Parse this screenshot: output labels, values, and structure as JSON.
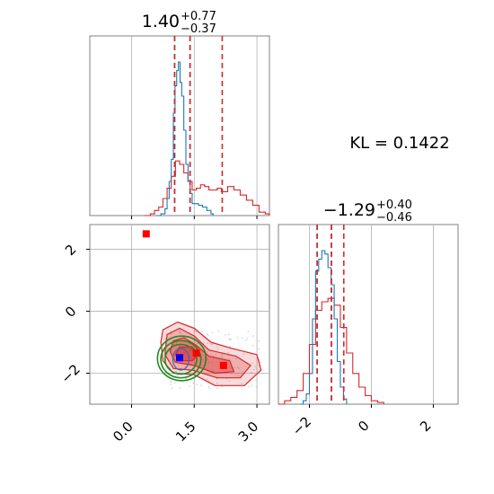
{
  "colors": {
    "blue": "#1f77b4",
    "red": "#d62728",
    "green": "#228b22",
    "marker_red": "#ff0000",
    "marker_blue": "#0000ff",
    "grid": "#b0b0b0",
    "spine": "#808080"
  },
  "chart_data": {
    "type": "corner",
    "kl_text": "KL = 0.1422",
    "param1": {
      "median": "1.40",
      "plus": "+0.77",
      "minus": "−0.37",
      "range": [
        -1.0,
        3.3
      ],
      "ticks": [
        0.0,
        1.5,
        3.0
      ],
      "tick_labels": [
        "0.0",
        "1.5",
        "3.0"
      ],
      "quantiles_red": [
        1.03,
        1.4,
        2.17
      ],
      "quantiles_blue": [
        1.03,
        1.4
      ],
      "hist_blue": [
        [
          0.6,
          0
        ],
        [
          0.7,
          0.01
        ],
        [
          0.8,
          0.04
        ],
        [
          0.85,
          0.1
        ],
        [
          0.9,
          0.2
        ],
        [
          0.95,
          0.33
        ],
        [
          1.0,
          0.6
        ],
        [
          1.04,
          0.76
        ],
        [
          1.08,
          0.85
        ],
        [
          1.12,
          0.9
        ],
        [
          1.16,
          0.78
        ],
        [
          1.2,
          0.7
        ],
        [
          1.25,
          0.5
        ],
        [
          1.3,
          0.3
        ],
        [
          1.35,
          0.2
        ],
        [
          1.4,
          0.13
        ],
        [
          1.45,
          0.07
        ],
        [
          1.5,
          0.07
        ],
        [
          1.6,
          0.06
        ],
        [
          1.7,
          0.05
        ],
        [
          1.8,
          0.03
        ],
        [
          1.9,
          0.01
        ],
        [
          1.95,
          0
        ]
      ],
      "hist_red": [
        [
          0.3,
          0
        ],
        [
          0.45,
          0.01
        ],
        [
          0.55,
          0.03
        ],
        [
          0.65,
          0.05
        ],
        [
          0.75,
          0.1
        ],
        [
          0.85,
          0.16
        ],
        [
          0.95,
          0.23
        ],
        [
          1.05,
          0.32
        ],
        [
          1.15,
          0.3
        ],
        [
          1.25,
          0.25
        ],
        [
          1.35,
          0.2
        ],
        [
          1.45,
          0.15
        ],
        [
          1.55,
          0.16
        ],
        [
          1.65,
          0.18
        ],
        [
          1.75,
          0.17
        ],
        [
          1.85,
          0.15
        ],
        [
          1.95,
          0.15
        ],
        [
          2.05,
          0.16
        ],
        [
          2.15,
          0.14
        ],
        [
          2.3,
          0.17
        ],
        [
          2.45,
          0.15
        ],
        [
          2.6,
          0.12
        ],
        [
          2.75,
          0.09
        ],
        [
          2.9,
          0.06
        ],
        [
          3.05,
          0.02
        ],
        [
          3.2,
          0.01
        ],
        [
          3.3,
          0
        ]
      ]
    },
    "param2": {
      "median": "−1.29",
      "plus": "+0.40",
      "minus": "−0.46",
      "range": [
        -3.0,
        2.8
      ],
      "ticks": [
        -2,
        0,
        2
      ],
      "tick_labels": [
        "−2",
        "0",
        "2"
      ],
      "quantiles_red": [
        -1.75,
        -1.29,
        -0.89
      ],
      "quantiles_blue": [
        -1.75,
        -1.29
      ],
      "hist_blue": [
        [
          -2.3,
          0
        ],
        [
          -2.2,
          0.02
        ],
        [
          -2.1,
          0.06
        ],
        [
          -2.0,
          0.18
        ],
        [
          -1.9,
          0.5
        ],
        [
          -1.8,
          0.78
        ],
        [
          -1.7,
          0.85
        ],
        [
          -1.6,
          0.9
        ],
        [
          -1.5,
          0.88
        ],
        [
          -1.4,
          0.8
        ],
        [
          -1.3,
          0.7
        ],
        [
          -1.2,
          0.5
        ],
        [
          -1.1,
          0.25
        ],
        [
          -1.0,
          0.1
        ],
        [
          -0.9,
          0.03
        ],
        [
          -0.8,
          0
        ]
      ],
      "hist_red": [
        [
          -3.0,
          0
        ],
        [
          -2.8,
          0.02
        ],
        [
          -2.6,
          0.04
        ],
        [
          -2.4,
          0.08
        ],
        [
          -2.2,
          0.18
        ],
        [
          -2.0,
          0.35
        ],
        [
          -1.8,
          0.55
        ],
        [
          -1.6,
          0.6
        ],
        [
          -1.4,
          0.62
        ],
        [
          -1.2,
          0.58
        ],
        [
          -1.0,
          0.45
        ],
        [
          -0.8,
          0.3
        ],
        [
          -0.6,
          0.18
        ],
        [
          -0.4,
          0.1
        ],
        [
          -0.2,
          0.05
        ],
        [
          0.0,
          0.02
        ],
        [
          0.2,
          0.01
        ],
        [
          0.4,
          0
        ]
      ]
    },
    "joint": {
      "red_markers": [
        [
          0.35,
          2.5
        ],
        [
          1.55,
          -1.35
        ],
        [
          2.2,
          -1.75
        ]
      ],
      "blue_marker": [
        1.15,
        -1.5
      ],
      "red_levels": [
        {
          "points": [
            [
              0.75,
              -0.6
            ],
            [
              1.1,
              -0.35
            ],
            [
              1.5,
              -0.55
            ],
            [
              1.9,
              -1.0
            ],
            [
              2.4,
              -1.2
            ],
            [
              3.0,
              -1.4
            ],
            [
              3.1,
              -1.9
            ],
            [
              2.7,
              -2.4
            ],
            [
              2.0,
              -2.4
            ],
            [
              1.5,
              -2.05
            ],
            [
              1.0,
              -2.0
            ],
            [
              0.75,
              -1.6
            ],
            [
              0.7,
              -1.0
            ]
          ],
          "opacity": 0.3
        },
        {
          "points": [
            [
              0.85,
              -0.75
            ],
            [
              1.15,
              -0.55
            ],
            [
              1.5,
              -0.8
            ],
            [
              1.85,
              -1.25
            ],
            [
              2.5,
              -1.45
            ],
            [
              2.85,
              -1.75
            ],
            [
              2.6,
              -2.15
            ],
            [
              2.05,
              -2.15
            ],
            [
              1.45,
              -1.9
            ],
            [
              1.0,
              -1.85
            ],
            [
              0.8,
              -1.4
            ]
          ],
          "opacity": 0.45
        },
        {
          "points": [
            [
              1.0,
              -0.95
            ],
            [
              1.25,
              -0.85
            ],
            [
              1.55,
              -1.1
            ],
            [
              1.85,
              -1.45
            ],
            [
              2.35,
              -1.6
            ],
            [
              2.45,
              -1.95
            ],
            [
              2.0,
              -2.0
            ],
            [
              1.5,
              -1.75
            ],
            [
              1.05,
              -1.65
            ],
            [
              0.92,
              -1.3
            ]
          ],
          "opacity": 0.7
        },
        {
          "points": [
            [
              1.15,
              -1.15
            ],
            [
              1.45,
              -1.15
            ],
            [
              1.6,
              -1.4
            ],
            [
              1.45,
              -1.6
            ],
            [
              1.15,
              -1.6
            ],
            [
              1.05,
              -1.4
            ]
          ],
          "opacity": 0.9
        }
      ],
      "green_ellipses": [
        {
          "cx": 1.18,
          "cy": -1.55,
          "rx": 0.38,
          "ry": 0.48
        },
        {
          "cx": 1.18,
          "cy": -1.55,
          "rx": 0.48,
          "ry": 0.6
        },
        {
          "cx": 1.2,
          "cy": -1.52,
          "rx": 0.58,
          "ry": 0.72
        }
      ]
    }
  }
}
